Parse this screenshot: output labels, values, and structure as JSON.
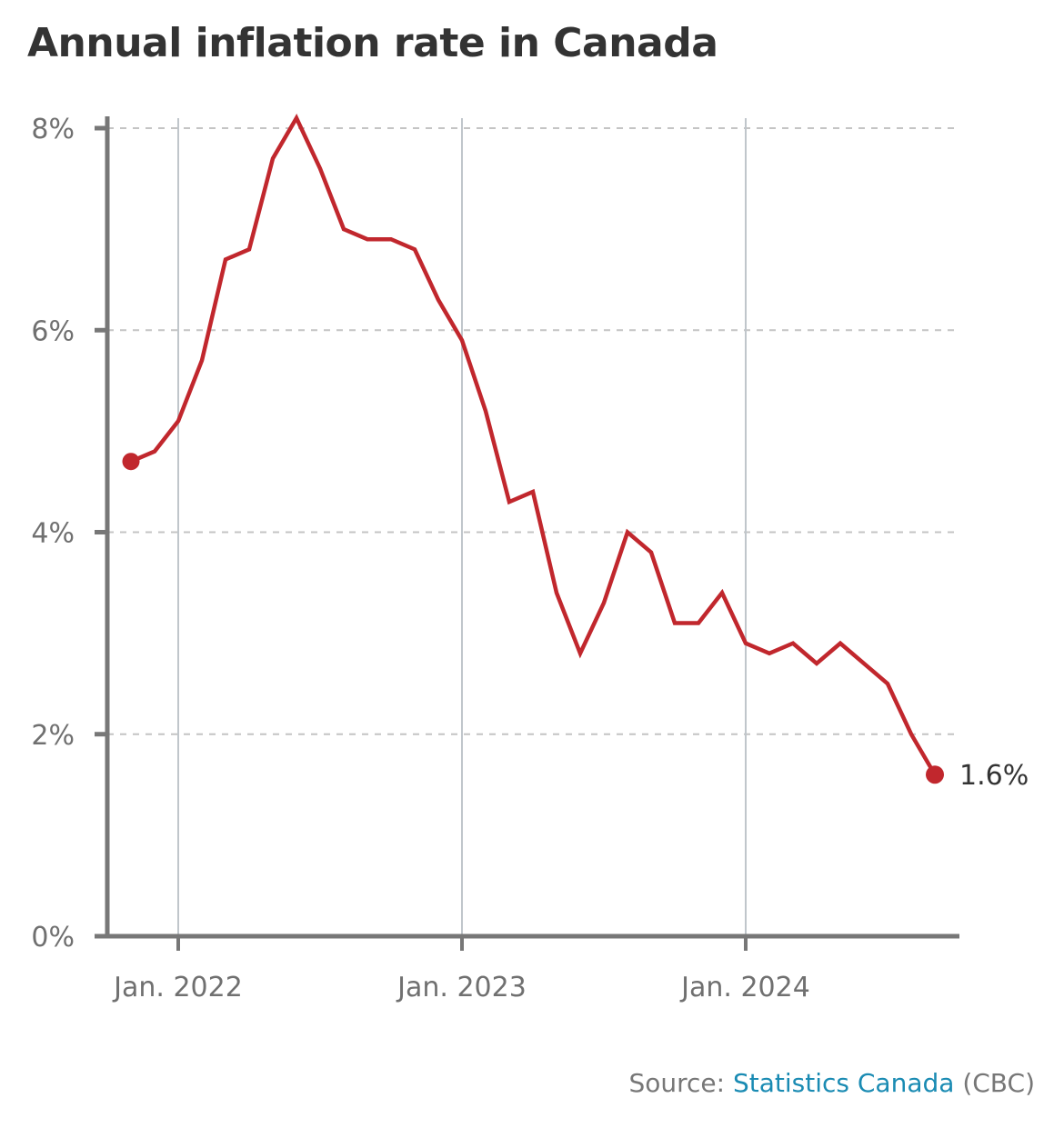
{
  "title": "Annual inflation rate in Canada",
  "source": {
    "prefix": "Source: ",
    "link_text": "Statistics Canada",
    "suffix": " (CBC)"
  },
  "colors": {
    "line": "#c1272d",
    "axis": "#777777",
    "grid_h": "#c4c4c4",
    "grid_v": "#c0c6cb",
    "link": "#1a8bb3"
  },
  "chart_data": {
    "type": "line",
    "title": "Annual inflation rate in Canada",
    "xlabel": "",
    "ylabel": "",
    "ylim": [
      0,
      8
    ],
    "yticks": [
      0,
      2,
      4,
      6,
      8
    ],
    "ytick_labels": [
      "0%",
      "2%",
      "4%",
      "6%",
      "8%"
    ],
    "xticks": [
      "2022-01",
      "2023-01",
      "2024-01"
    ],
    "xtick_labels": [
      "Jan. 2022",
      "Jan. 2023",
      "Jan. 2024"
    ],
    "grid": "horizontal dashed at y ticks, vertical solid at x ticks",
    "series": [
      {
        "name": "Annual inflation rate",
        "x": [
          "2021-11",
          "2021-12",
          "2022-01",
          "2022-02",
          "2022-03",
          "2022-04",
          "2022-05",
          "2022-06",
          "2022-07",
          "2022-08",
          "2022-09",
          "2022-10",
          "2022-11",
          "2022-12",
          "2023-01",
          "2023-02",
          "2023-03",
          "2023-04",
          "2023-05",
          "2023-06",
          "2023-07",
          "2023-08",
          "2023-09",
          "2023-10",
          "2023-11",
          "2023-12",
          "2024-01",
          "2024-02",
          "2024-03",
          "2024-04",
          "2024-05",
          "2024-06",
          "2024-07",
          "2024-08",
          "2024-09"
        ],
        "values": [
          4.7,
          4.8,
          5.1,
          5.7,
          6.7,
          6.8,
          7.7,
          8.1,
          7.6,
          7.0,
          6.9,
          6.9,
          6.8,
          6.3,
          5.9,
          5.2,
          4.3,
          4.4,
          3.4,
          2.8,
          3.3,
          4.0,
          3.8,
          3.1,
          3.1,
          3.4,
          2.9,
          2.8,
          2.9,
          2.7,
          2.9,
          2.7,
          2.5,
          2.0,
          1.6
        ]
      }
    ],
    "annotations": [
      {
        "point": "last",
        "label": "1.6%"
      }
    ],
    "markers": [
      "first",
      "last"
    ]
  }
}
